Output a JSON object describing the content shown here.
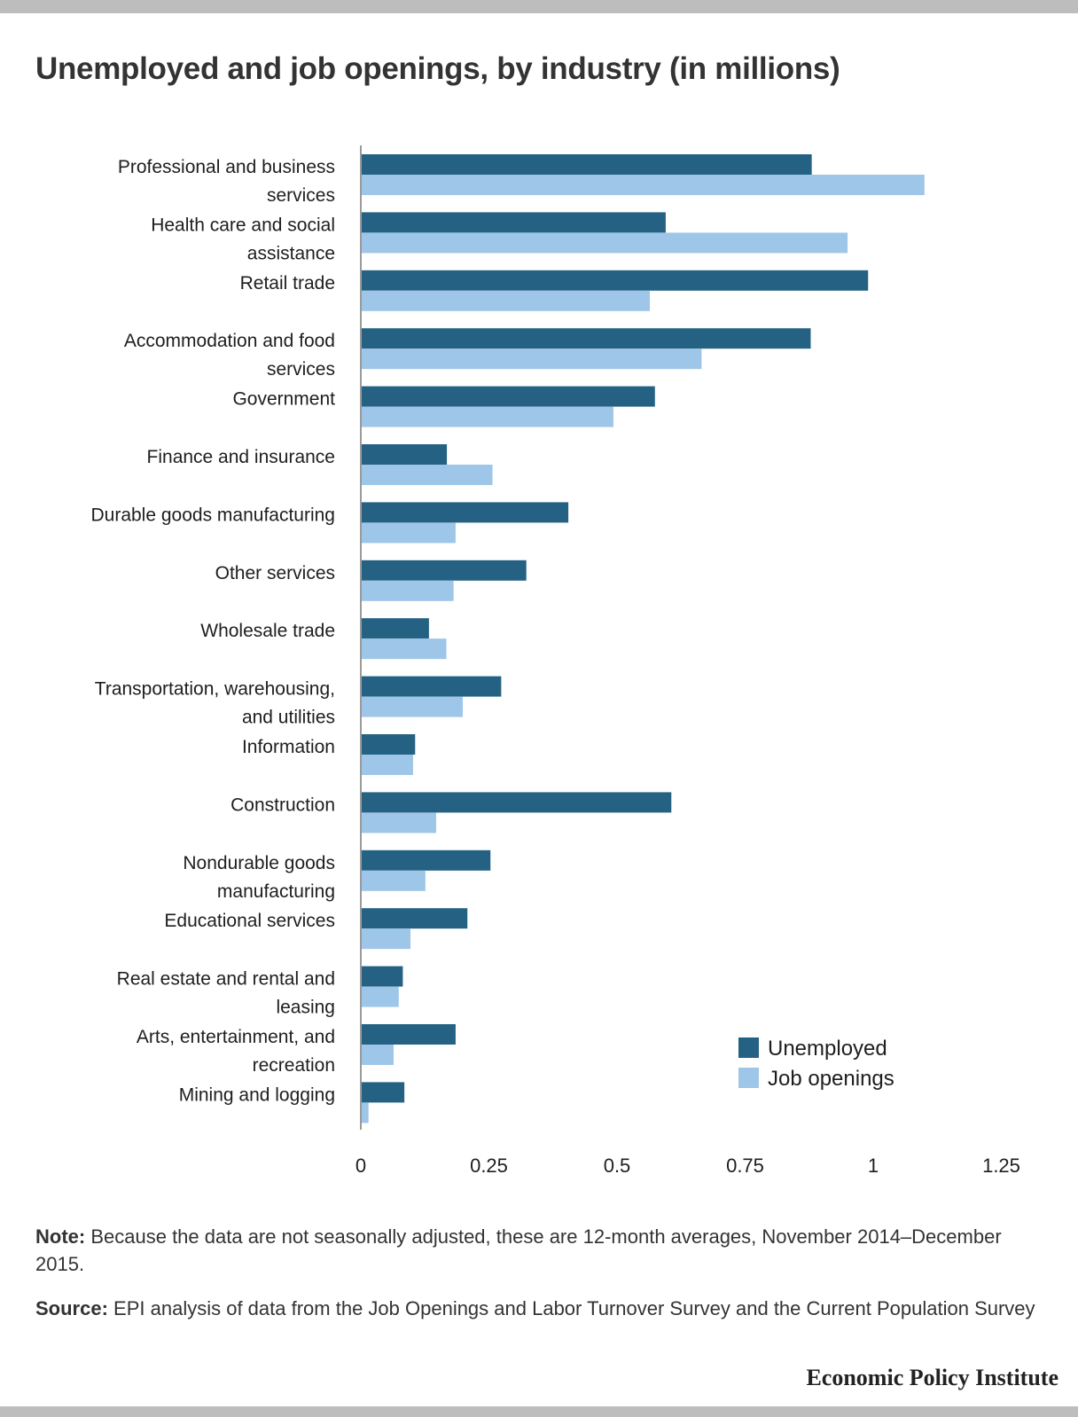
{
  "page": {
    "title": "Unemployed and job openings, by industry (in millions)",
    "note_label": "Note:",
    "note_text": "Because the data are not seasonally adjusted, these are 12-month averages, November 2014–December 2015.",
    "source_label": "Source:",
    "source_text": "EPI analysis of data from the Job Openings and Labor Turnover Survey and the Current Population Survey",
    "brand": "Economic Policy Institute"
  },
  "chart_data": {
    "type": "bar",
    "orientation": "horizontal",
    "title": "Unemployed and job openings, by industry (in millions)",
    "categories": [
      [
        "Professional and business",
        "services"
      ],
      [
        "Health care and social",
        "assistance"
      ],
      [
        "Retail trade"
      ],
      [
        "Accommodation and food",
        "services"
      ],
      [
        "Government"
      ],
      [
        "Finance and insurance"
      ],
      [
        "Durable goods manufacturing"
      ],
      [
        "Other services"
      ],
      [
        "Wholesale trade"
      ],
      [
        "Transportation, warehousing,",
        "and utilities"
      ],
      [
        "Information"
      ],
      [
        "Construction"
      ],
      [
        "Nondurable goods",
        "manufacturing"
      ],
      [
        "Educational services"
      ],
      [
        "Real estate and rental and",
        "leasing"
      ],
      [
        "Arts, entertainment, and",
        "recreation"
      ],
      [
        "Mining and logging"
      ]
    ],
    "series": [
      {
        "name": "Unemployed",
        "color": "#256183",
        "values": [
          0.88,
          0.595,
          0.99,
          0.878,
          0.574,
          0.168,
          0.405,
          0.323,
          0.133,
          0.274,
          0.106,
          0.606,
          0.253,
          0.208,
          0.082,
          0.185,
          0.085
        ]
      },
      {
        "name": "Job openings",
        "color": "#9ec6e8",
        "values": [
          1.1,
          0.95,
          0.564,
          0.665,
          0.493,
          0.257,
          0.185,
          0.181,
          0.167,
          0.199,
          0.102,
          0.147,
          0.126,
          0.097,
          0.074,
          0.064,
          0.015
        ]
      }
    ],
    "xlim": [
      0,
      1.25
    ],
    "xticks": [
      "0",
      "0.25",
      "0.5",
      "0.75",
      "1",
      "1.25"
    ],
    "xtick_values": [
      0,
      0.25,
      0.5,
      0.75,
      1,
      1.25
    ],
    "grid": false,
    "legend_position": "bottom-right"
  }
}
